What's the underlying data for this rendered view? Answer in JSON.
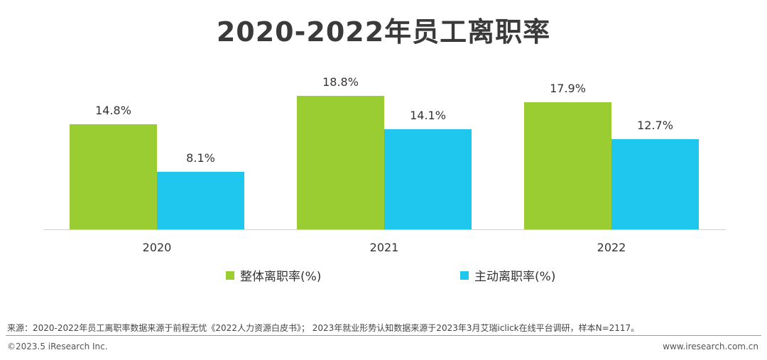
{
  "title": "2020-2022年员工离职率",
  "chart_data": {
    "type": "bar",
    "categories": [
      "2020",
      "2021",
      "2022"
    ],
    "series": [
      {
        "name": "整体离职率(%)",
        "values": [
          14.8,
          18.8,
          17.9
        ],
        "labels": [
          "14.8%",
          "18.8%",
          "17.9%"
        ],
        "color": "#9ACD32"
      },
      {
        "name": "主动离职率(%)",
        "values": [
          8.1,
          14.1,
          12.7
        ],
        "labels": [
          "8.1%",
          "14.1%",
          "12.7%"
        ],
        "color": "#1FC6EE"
      }
    ],
    "ylim": [
      0,
      22
    ],
    "grid": false,
    "legend_position": "bottom",
    "xlabel": "",
    "ylabel": ""
  },
  "legend": {
    "item1": "整体离职率(%)",
    "item2": "主动离职率(%)"
  },
  "footer": {
    "source": "来源：2020-2022年员工离职率数据来源于前程无忧《2022人力资源白皮书》； 2023年就业形势认知数据来源于2023年3月艾瑞iclick在线平台调研，样本N=2117。",
    "copyright": "©2023.5 iResearch Inc.",
    "website": "www.iresearch.com.cn"
  }
}
